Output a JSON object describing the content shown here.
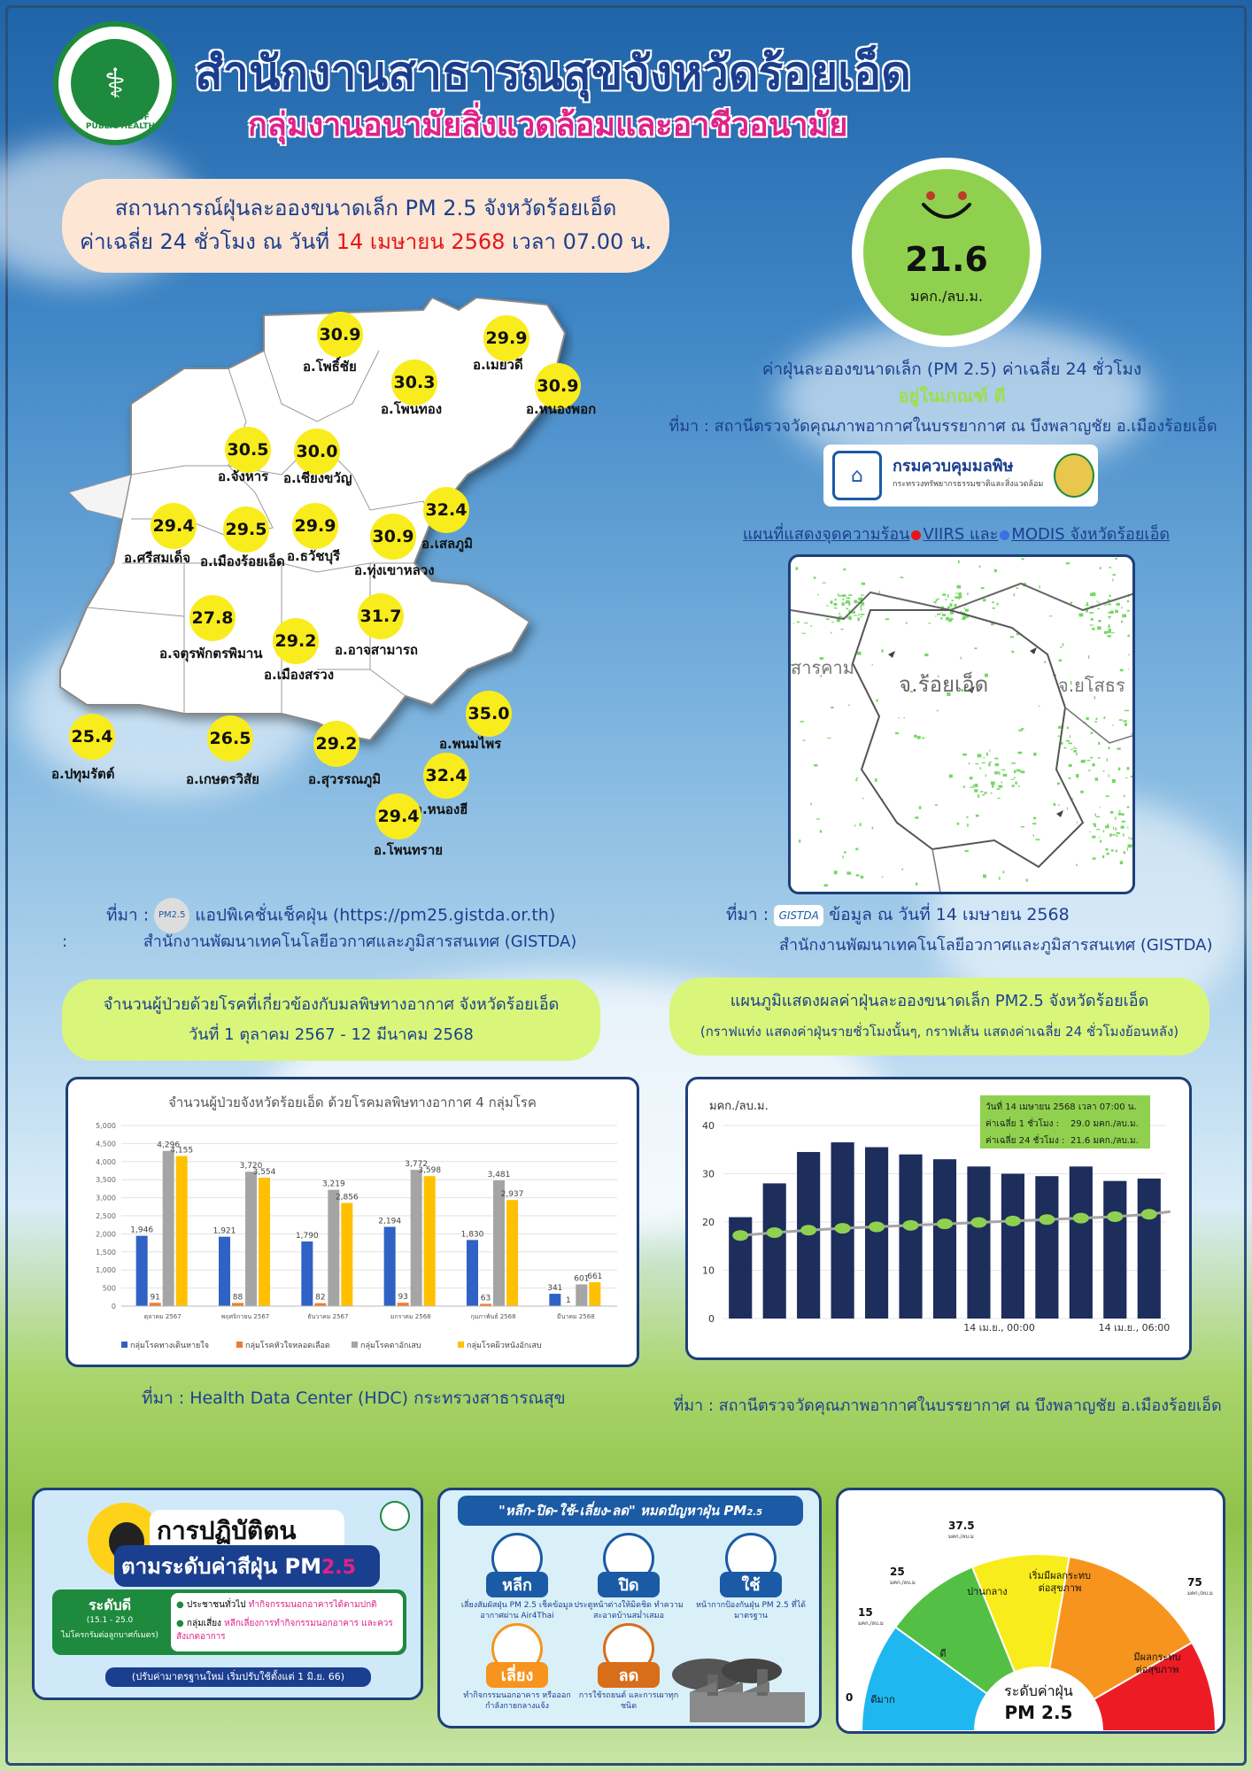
{
  "header": {
    "title": "สำนักงานสาธารณสุขจังหวัดร้อยเอ็ด",
    "subtitle": "กลุ่มงานอนามัยสิ่งแวดล้อมและอาชีวอนามัย",
    "logo_text": "MINISTRY OF PUBLIC HEALTH"
  },
  "headline": {
    "line1": "สถานการณ์ฝุ่นละอองขนาดเล็ก PM 2.5 จังหวัดร้อยเอ็ด",
    "line2_prefix": "ค่าเฉลี่ย 24 ชั่วโมง ณ วันที่",
    "line2_date": "14 เมษายน 2568",
    "line2_suffix": "เวลา 07.00 น."
  },
  "current": {
    "value": "21.6",
    "unit": "มคก./ลบ.ม.",
    "caption": "ค่าฝุ่นละอองขนาดเล็ก (PM 2.5) ค่าเฉลี่ย 24 ชั่วโมง",
    "status": "อยู่ในเกณฑ์ ดี",
    "source": "ที่มา : สถานีตรวจวัดคุณภาพอากาศในบรรยากาศ ณ บึงพลาญชัย อ.เมืองร้อยเอ็ด",
    "status_color": "#8fd14f"
  },
  "pcd": {
    "name": "กรมควบคุมมลพิษ",
    "sub": "กระทรวงทรัพยากรธรรมชาติและสิ่งแวดล้อม"
  },
  "hotspot": {
    "title_prefix": "แผนที่แสดงจุดความร้อน",
    "viirs": "VIIRS",
    "and": "และ",
    "modis": "MODIS",
    "title_suffix": "จังหวัดร้อยเอ็ด",
    "map_labels": [
      "สารคาม",
      "จ.ร้อยเอ็ด",
      "จ.ยโสธร"
    ],
    "source_prefix": "ที่มา :",
    "badge": "GISTDA",
    "source_date": "ข้อมูล ณ วันที่ 14 เมษายน 2568",
    "source_org": "สำนักงานพัฒนาเทคโนโลยีอวกาศและภูมิสารสนเทศ (GISTDA)"
  },
  "districts": [
    {
      "name": "อ.โพธิ์ชัย",
      "value": "30.9"
    },
    {
      "name": "อ.เมยวดี",
      "value": "29.9"
    },
    {
      "name": "อ.โพนทอง",
      "value": "30.3"
    },
    {
      "name": "อ.หนองพอก",
      "value": "30.9"
    },
    {
      "name": "อ.จังหาร",
      "value": "30.5"
    },
    {
      "name": "อ.เชียงขวัญ",
      "value": "30.0"
    },
    {
      "name": "อ.ศรีสมเด็จ",
      "value": "29.4"
    },
    {
      "name": "อ.เมืองร้อยเอ็ด",
      "value": "29.5"
    },
    {
      "name": "อ.ธวัชบุรี",
      "value": "29.9"
    },
    {
      "name": "อ.ทุ่งเขาหลวง",
      "value": "30.9"
    },
    {
      "name": "อ.เสลภูมิ",
      "value": "32.4"
    },
    {
      "name": "อ.จตุรพักตรพิมาน",
      "value": "27.8"
    },
    {
      "name": "อ.เมืองสรวง",
      "value": "29.2"
    },
    {
      "name": "อ.อาจสามารถ",
      "value": "31.7"
    },
    {
      "name": "อ.พนมไพร",
      "value": "35.0"
    },
    {
      "name": "อ.ปทุมรัตต์",
      "value": "25.4"
    },
    {
      "name": "อ.เกษตรวิสัย",
      "value": "26.5"
    },
    {
      "name": "อ.สุวรรณภูมิ",
      "value": "29.2"
    },
    {
      "name": "อ.หนองฮี",
      "value": "32.4"
    },
    {
      "name": "อ.โพนทราย",
      "value": "29.4"
    }
  ],
  "map_source": {
    "prefix": "ที่มา :",
    "badge": "PM2.5",
    "app": "แอปพิเคชั่นเช็คฝุ่น (https://pm25.gistda.or.th)",
    "org": "สำนักงานพัฒนาเทคโนโลยีอวกาศและภูมิสารสนเทศ (GISTDA)",
    "colon": ":"
  },
  "patients_section": {
    "line1": "จำนวนผู้ป่วยด้วยโรคที่เกี่ยวข้องกับมลพิษทางอากาศ จังหวัดร้อยเอ็ด",
    "line2": "วันที่ 1 ตุลาคม 2567 - 12 มีนาคม 2568",
    "source": "ที่มา :  Health Data Center (HDC) กระทรวงสาธารณสุข"
  },
  "pm_chart_section": {
    "line1": "แผนภูมิแสดงผลค่าฝุ่นละอองขนาดเล็ก PM2.5 จังหวัดร้อยเอ็ด",
    "line2": "(กราฟแท่ง แสดงค่าฝุ่นรายชั่วโมงนั้นๆ, กราฟเส้น แสดงค่าเฉลี่ย 24 ชั่วโมงย้อนหลัง)",
    "source": "ที่มา : สถานีตรวจวัดคุณภาพอากาศในบรรยากาศ ณ บึงพลาญชัย อ.เมืองร้อยเอ็ด"
  },
  "chart_data": [
    {
      "type": "bar",
      "title": "จำนวนผู้ป่วยจังหวัดร้อยเอ็ด ด้วยโรคมลพิษทางอากาศ 4 กลุ่มโรค",
      "categories": [
        "ตุลาคม 2567",
        "พฤศจิกายน 2567",
        "ธันวาคม 2567",
        "มกราคม 2568",
        "กุมภาพันธ์ 2568",
        "มีนาคม 2568"
      ],
      "series": [
        {
          "name": "กลุ่มโรคทางเดินหายใจ",
          "color": "#2f62c4",
          "values": [
            1946,
            1921,
            1790,
            2194,
            1830,
            341
          ]
        },
        {
          "name": "กลุ่มโรคหัวใจหลอดเลือด",
          "color": "#ed7d31",
          "values": [
            91,
            88,
            82,
            93,
            63,
            1
          ]
        },
        {
          "name": "กลุ่มโรคตาอักเสบ",
          "color": "#a5a5a5",
          "values": [
            4296,
            3720,
            3219,
            3772,
            3481,
            601
          ]
        },
        {
          "name": "กลุ่มโรคผิวหนังอักเสบ",
          "color": "#ffc000",
          "values": [
            4155,
            3554,
            2856,
            3598,
            2937,
            661
          ]
        }
      ],
      "yticks": [
        "0",
        "500",
        "1,000",
        "1,500",
        "2,000",
        "2,500",
        "3,000",
        "3,500",
        "4,000",
        "4,500",
        "5,000"
      ],
      "ylim": [
        0,
        5000
      ]
    },
    {
      "type": "bar",
      "ylabel": "มคก./ลบ.ม.",
      "hours": 14,
      "bars": [
        21,
        28,
        34.5,
        36.5,
        35.5,
        34,
        33,
        31.5,
        30,
        29.5,
        31.5,
        28.5,
        29
      ],
      "avg24": [
        17.2,
        17.8,
        18.3,
        18.7,
        19.0,
        19.3,
        19.6,
        19.9,
        20.2,
        20.5,
        20.8,
        21.1,
        21.6
      ],
      "ylim": [
        0,
        40
      ],
      "yticks": [
        "0",
        "10",
        "20",
        "30",
        "40"
      ],
      "xticks": [
        "14 เม.ย., 00:00",
        "14 เม.ย., 06:00"
      ],
      "bar_color": "#1d2d5c",
      "line_color": "#a5a5a5",
      "marker_color": "#8fd14f",
      "info": [
        {
          "label": "วันที่  14 เมษายน  2568  เวลา 07:00 น.",
          "value": ""
        },
        {
          "label": "ค่าเฉลี่ย 1 ชั่วโมง   :",
          "value": "29.0 มคก./ลบ.ม."
        },
        {
          "label": "ค่าเฉลี่ย 24 ชั่วโมง :",
          "value": "21.6 มคก./ลบ.ม."
        }
      ]
    },
    {
      "type": "pie",
      "title": "ระดับค่าฝุ่น PM 2.5",
      "title_line1": "ระดับค่าฝุ่น",
      "title_line2": "PM 2.5",
      "thresholds": [
        "0",
        "15",
        "25",
        "37.5",
        "75"
      ],
      "threshold_unit": "มคก./ลบ.ม",
      "segments": [
        {
          "label": "ดีมาก",
          "color": "#1fb7f0"
        },
        {
          "label": "ดี",
          "color": "#53c045"
        },
        {
          "label": "ปานกลาง",
          "color": "#f9ec1c"
        },
        {
          "label": "เริ่มมีผลกระทบต่อสุขภาพ",
          "color": "#f7941d"
        },
        {
          "label": "มีผลกระทบต่อสุขภาพ",
          "color": "#ed1c24"
        }
      ]
    }
  ],
  "guide_panel": {
    "title1": "การปฏิบัติตน",
    "title2": "ตามระดับค่าสีฝุ่น PM",
    "pm_sub": "2.5",
    "level_title": "ระดับดี",
    "level_range": "(15.1 - 25.0",
    "level_desc": "ไม่โครกรัมต่อลูกบาศก์เมตร)",
    "general_label": "ประชาชนทั่วไป",
    "general_text": "ทำกิจกรรมนอกอาคารได้ตามปกติ",
    "risk_label": "กลุ่มเสี่ยง",
    "risk_text": "หลีกเลี่ยงการทำกิจกรรมนอกอาคาร และควรสังเกตอาการ",
    "footer": "(ปรับค่ามาตรฐานใหม่ เริ่มปรับใช้ตั้งแต่ 1 มิ.ย. 66)"
  },
  "tips_panel": {
    "title": "\"หลีก-ปิด-ใช้-เลี่ยง-ลด\" หมดปัญหาฝุ่น PM",
    "pm_sub": "2.5",
    "items": [
      {
        "head": "หลีก",
        "text": "เลี่ยงสัมผัสฝุ่น PM 2.5 เช็คข้อมูลอากาศผ่าน Air4Thai"
      },
      {
        "head": "ปิด",
        "text": "ประตูหน้าต่างให้มิดชิด ทำความสะอาดบ้านสม่ำเสมอ"
      },
      {
        "head": "ใช้",
        "text": "หน้ากากป้องกันฝุ่น PM 2.5 ที่ได้มาตรฐาน"
      },
      {
        "head": "เลี่ยง",
        "text": "ทำกิจกรรมนอกอาคาร หรือออกกำลังกายกลางแจ้ง"
      },
      {
        "head": "ลด",
        "text": "การใช้รถยนต์ และการเผาทุกชนิด"
      }
    ]
  }
}
